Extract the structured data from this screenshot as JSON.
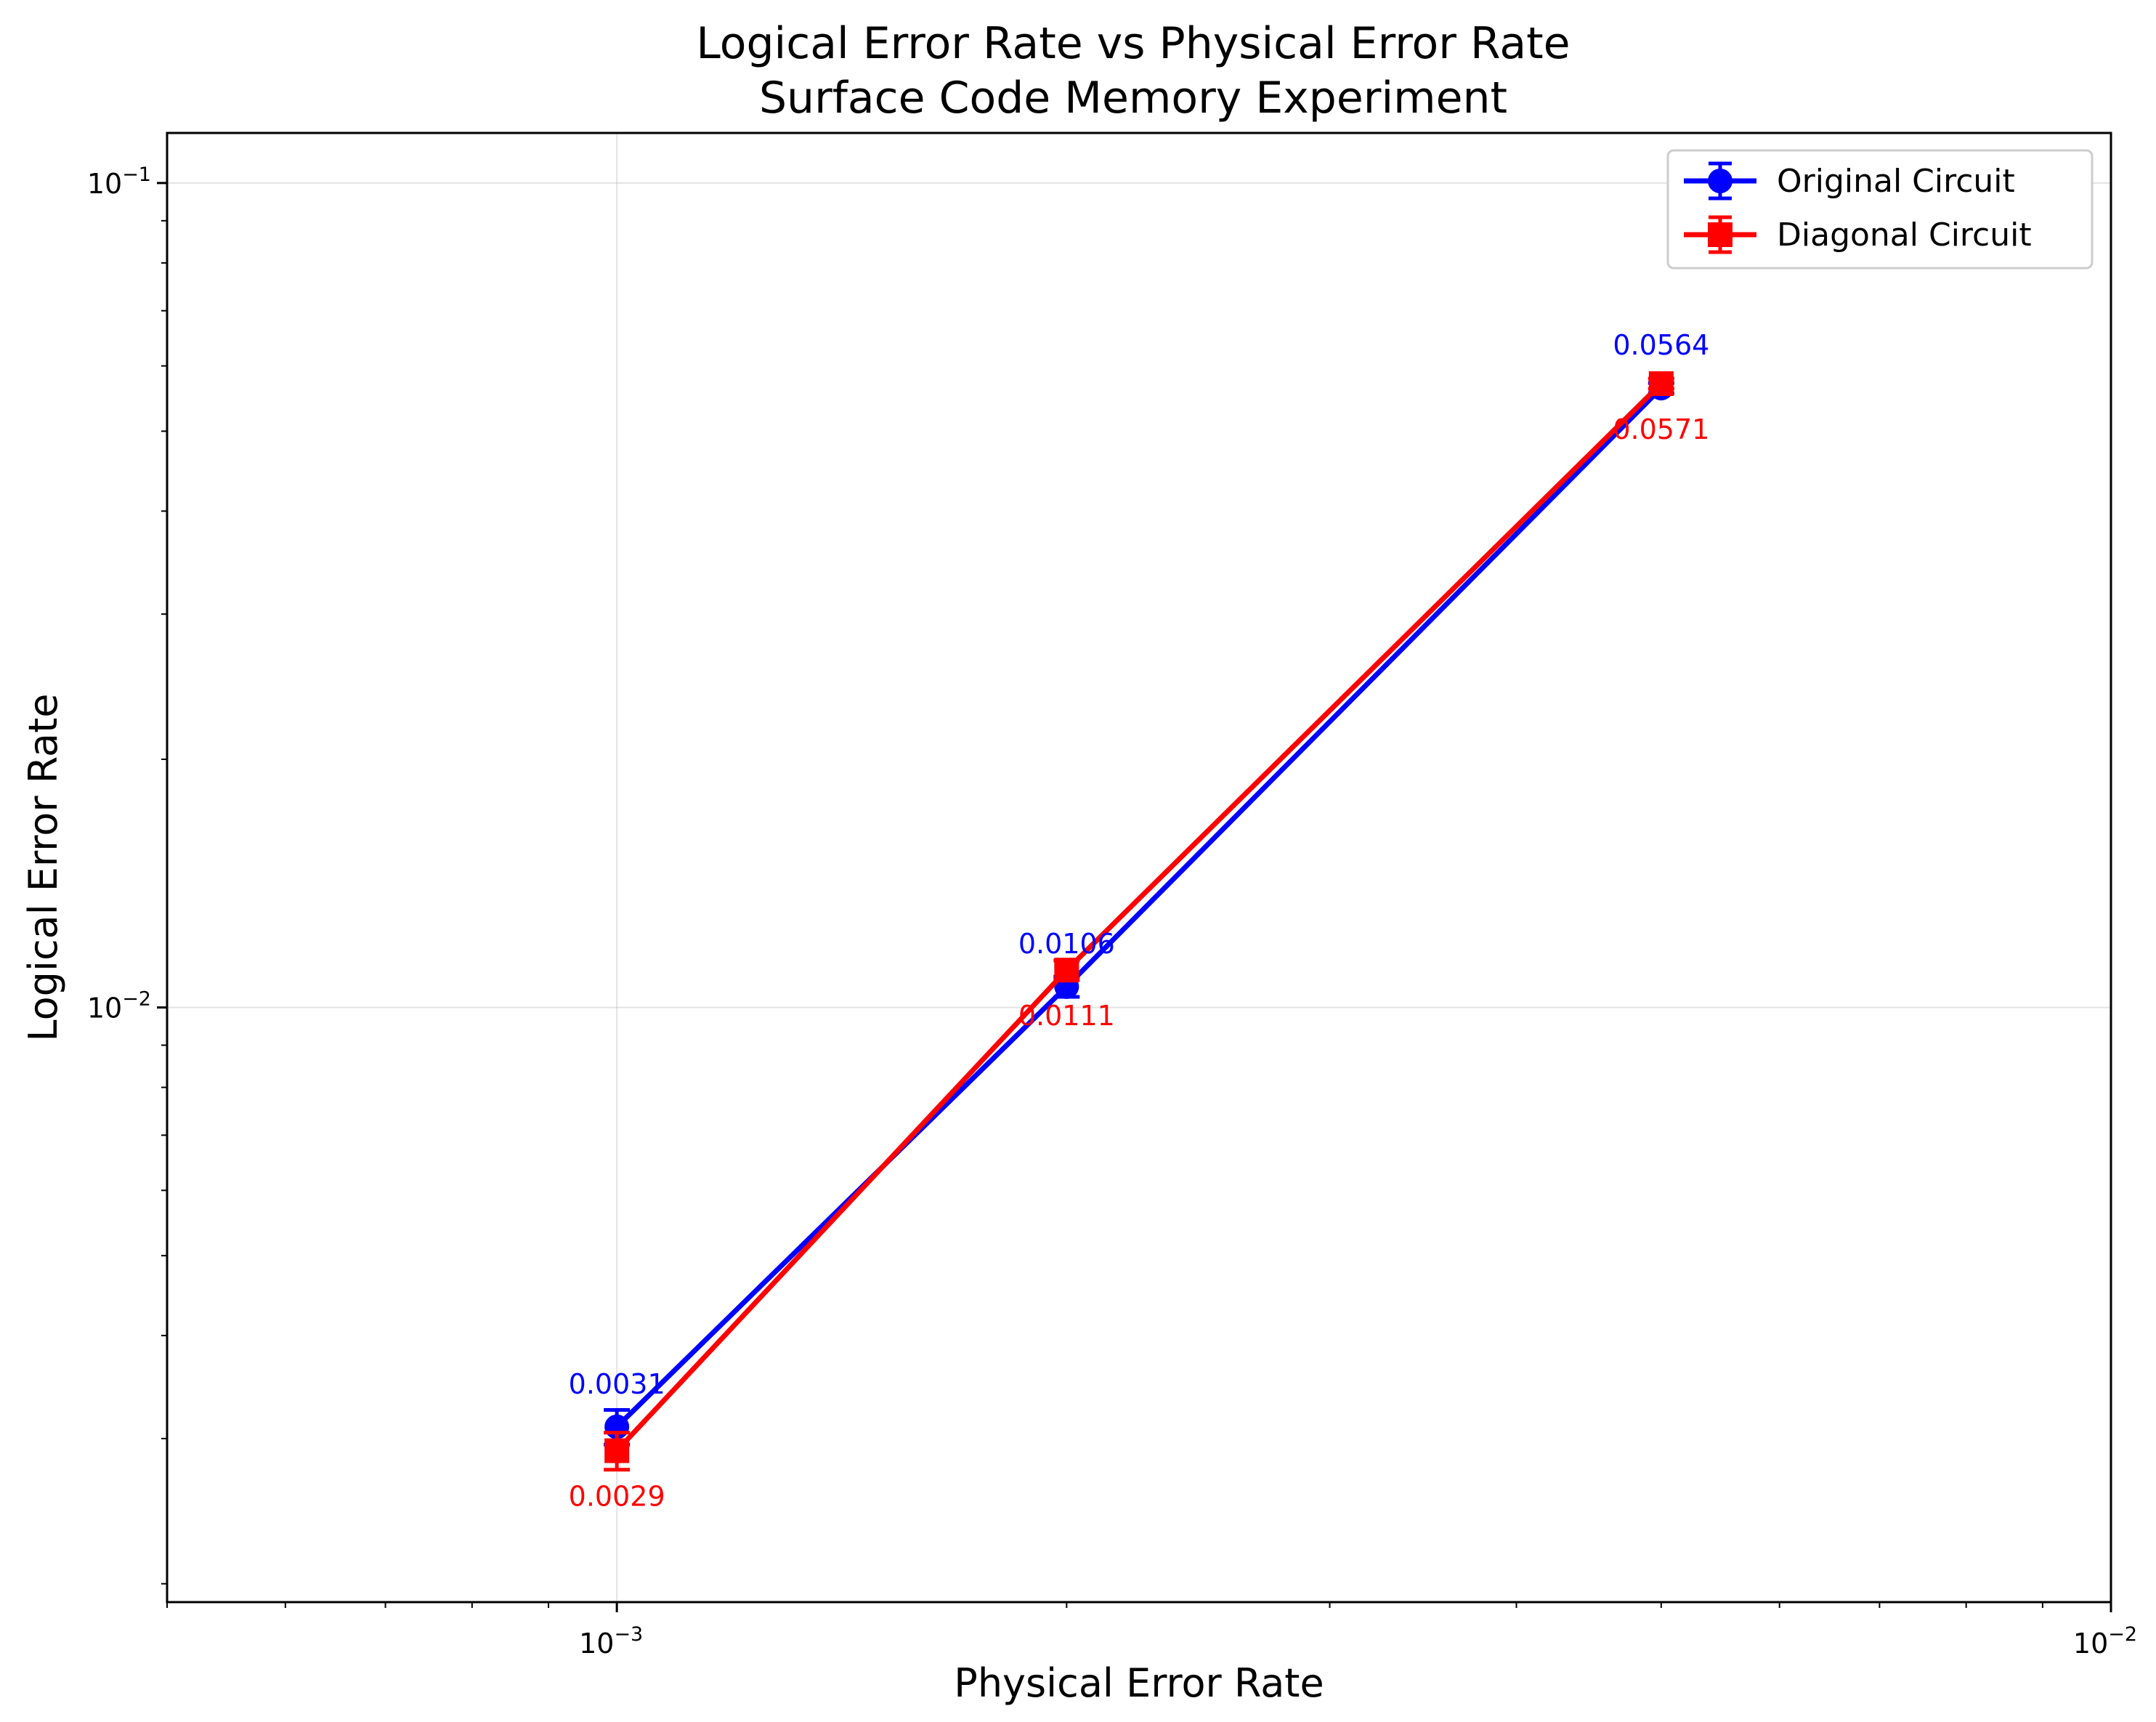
{
  "chart_data": {
    "type": "line",
    "title": [
      "Logical Error Rate vs Physical Error Rate",
      "Surface Code Memory Experiment"
    ],
    "xlabel": "Physical Error Rate",
    "ylabel": "Logical Error Rate",
    "xscale": "log",
    "yscale": "log",
    "xlim": [
      0.0005,
      0.01
    ],
    "ylim": [
      0.0019,
      0.115
    ],
    "x_ticks": [
      {
        "value": 0.001,
        "base": "10",
        "exp": "−3"
      },
      {
        "value": 0.01,
        "base": "10",
        "exp": "−2"
      }
    ],
    "y_ticks": [
      {
        "value": 0.01,
        "base": "10",
        "exp": "−2"
      },
      {
        "value": 0.1,
        "base": "10",
        "exp": "−1"
      }
    ],
    "grid": true,
    "legend_position": "top-right",
    "x": [
      0.001,
      0.002,
      0.005
    ],
    "series": [
      {
        "name": "Original Circuit",
        "color": "#0000ff",
        "marker": "circle",
        "values": [
          0.0031,
          0.0106,
          0.0564
        ],
        "labels": [
          "0.0031",
          "0.0106",
          "0.0564"
        ],
        "error": [
          0.00015,
          0.0003,
          0.0008
        ]
      },
      {
        "name": "Diagonal Circuit",
        "color": "#ff0000",
        "marker": "square",
        "values": [
          0.0029,
          0.0111,
          0.0571
        ],
        "labels": [
          "0.0029",
          "0.0111",
          "0.0571"
        ],
        "error": [
          0.00015,
          0.0003,
          0.0008
        ]
      }
    ]
  }
}
